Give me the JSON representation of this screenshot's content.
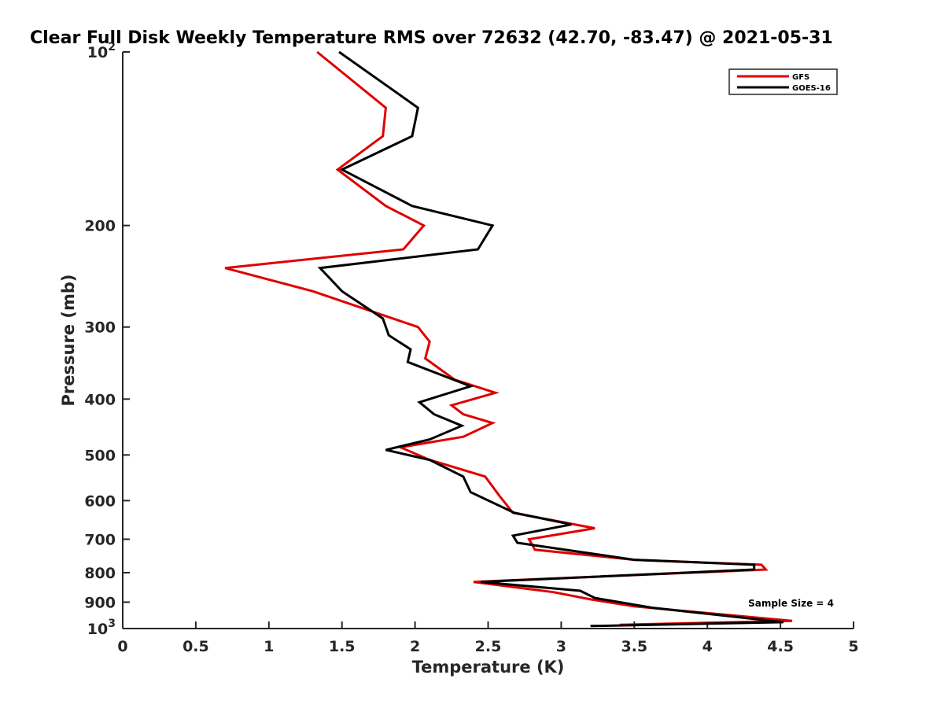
{
  "chart_data": {
    "type": "line",
    "title": "Clear Full Disk Weekly Temperature RMS over 72632 (42.70, -83.47) @ 2021-05-31",
    "xlabel": "Temperature (K)",
    "ylabel": "Pressure (mb)",
    "xlim": [
      0,
      5
    ],
    "ylim": [
      100,
      1000
    ],
    "yscale": "log",
    "y_reversed": true,
    "grid": false,
    "legend_position": "top-right",
    "x_ticks": [
      0,
      0.5,
      1,
      1.5,
      2,
      2.5,
      3,
      3.5,
      4,
      4.5,
      5
    ],
    "x_tick_labels": [
      "0",
      "0.5",
      "1",
      "1.5",
      "2",
      "2.5",
      "3",
      "3.5",
      "4",
      "4.5",
      "5"
    ],
    "y_ticks": [
      100,
      200,
      300,
      400,
      500,
      600,
      700,
      800,
      900,
      1000
    ],
    "y_tick_labels": [
      {
        "base": "10",
        "exp": "2"
      },
      {
        "base": "200",
        "exp": ""
      },
      {
        "base": "300",
        "exp": ""
      },
      {
        "base": "400",
        "exp": ""
      },
      {
        "base": "500",
        "exp": ""
      },
      {
        "base": "600",
        "exp": ""
      },
      {
        "base": "700",
        "exp": ""
      },
      {
        "base": "800",
        "exp": ""
      },
      {
        "base": "900",
        "exp": ""
      },
      {
        "base": "10",
        "exp": "3"
      }
    ],
    "annotation": "Sample Size = 4",
    "series": [
      {
        "name": "GFS",
        "color": "#e00000",
        "points": [
          [
            1.33,
            100
          ],
          [
            1.8,
            125
          ],
          [
            1.78,
            140
          ],
          [
            1.47,
            160
          ],
          [
            1.8,
            185
          ],
          [
            2.06,
            200
          ],
          [
            1.92,
            220
          ],
          [
            0.7,
            237
          ],
          [
            1.3,
            260
          ],
          [
            2.02,
            300
          ],
          [
            2.1,
            318
          ],
          [
            2.07,
            340
          ],
          [
            2.27,
            370
          ],
          [
            2.55,
            390
          ],
          [
            2.25,
            410
          ],
          [
            2.33,
            425
          ],
          [
            2.53,
            440
          ],
          [
            2.33,
            465
          ],
          [
            1.9,
            485
          ],
          [
            2.1,
            510
          ],
          [
            2.48,
            545
          ],
          [
            2.58,
            590
          ],
          [
            2.67,
            630
          ],
          [
            3.23,
            670
          ],
          [
            2.78,
            700
          ],
          [
            2.82,
            730
          ],
          [
            3.5,
            760
          ],
          [
            4.37,
            775
          ],
          [
            4.4,
            790
          ],
          [
            2.4,
            830
          ],
          [
            2.95,
            865
          ],
          [
            3.2,
            890
          ],
          [
            3.5,
            915
          ],
          [
            4.58,
            970
          ],
          [
            3.4,
            985
          ]
        ]
      },
      {
        "name": "GOES-16",
        "color": "#000000",
        "points": [
          [
            1.48,
            100
          ],
          [
            2.02,
            125
          ],
          [
            1.98,
            140
          ],
          [
            1.5,
            160
          ],
          [
            1.98,
            185
          ],
          [
            2.53,
            200
          ],
          [
            2.43,
            220
          ],
          [
            1.35,
            237
          ],
          [
            1.5,
            260
          ],
          [
            1.78,
            290
          ],
          [
            1.82,
            310
          ],
          [
            1.97,
            328
          ],
          [
            1.95,
            345
          ],
          [
            2.38,
            380
          ],
          [
            2.03,
            405
          ],
          [
            2.13,
            425
          ],
          [
            2.32,
            445
          ],
          [
            2.1,
            470
          ],
          [
            1.8,
            490
          ],
          [
            2.1,
            510
          ],
          [
            2.33,
            545
          ],
          [
            2.38,
            580
          ],
          [
            2.68,
            630
          ],
          [
            3.07,
            660
          ],
          [
            2.67,
            690
          ],
          [
            2.7,
            710
          ],
          [
            3.5,
            760
          ],
          [
            4.32,
            775
          ],
          [
            4.32,
            790
          ],
          [
            2.45,
            830
          ],
          [
            3.13,
            860
          ],
          [
            3.23,
            885
          ],
          [
            3.62,
            920
          ],
          [
            4.52,
            975
          ],
          [
            3.2,
            990
          ]
        ]
      }
    ]
  }
}
